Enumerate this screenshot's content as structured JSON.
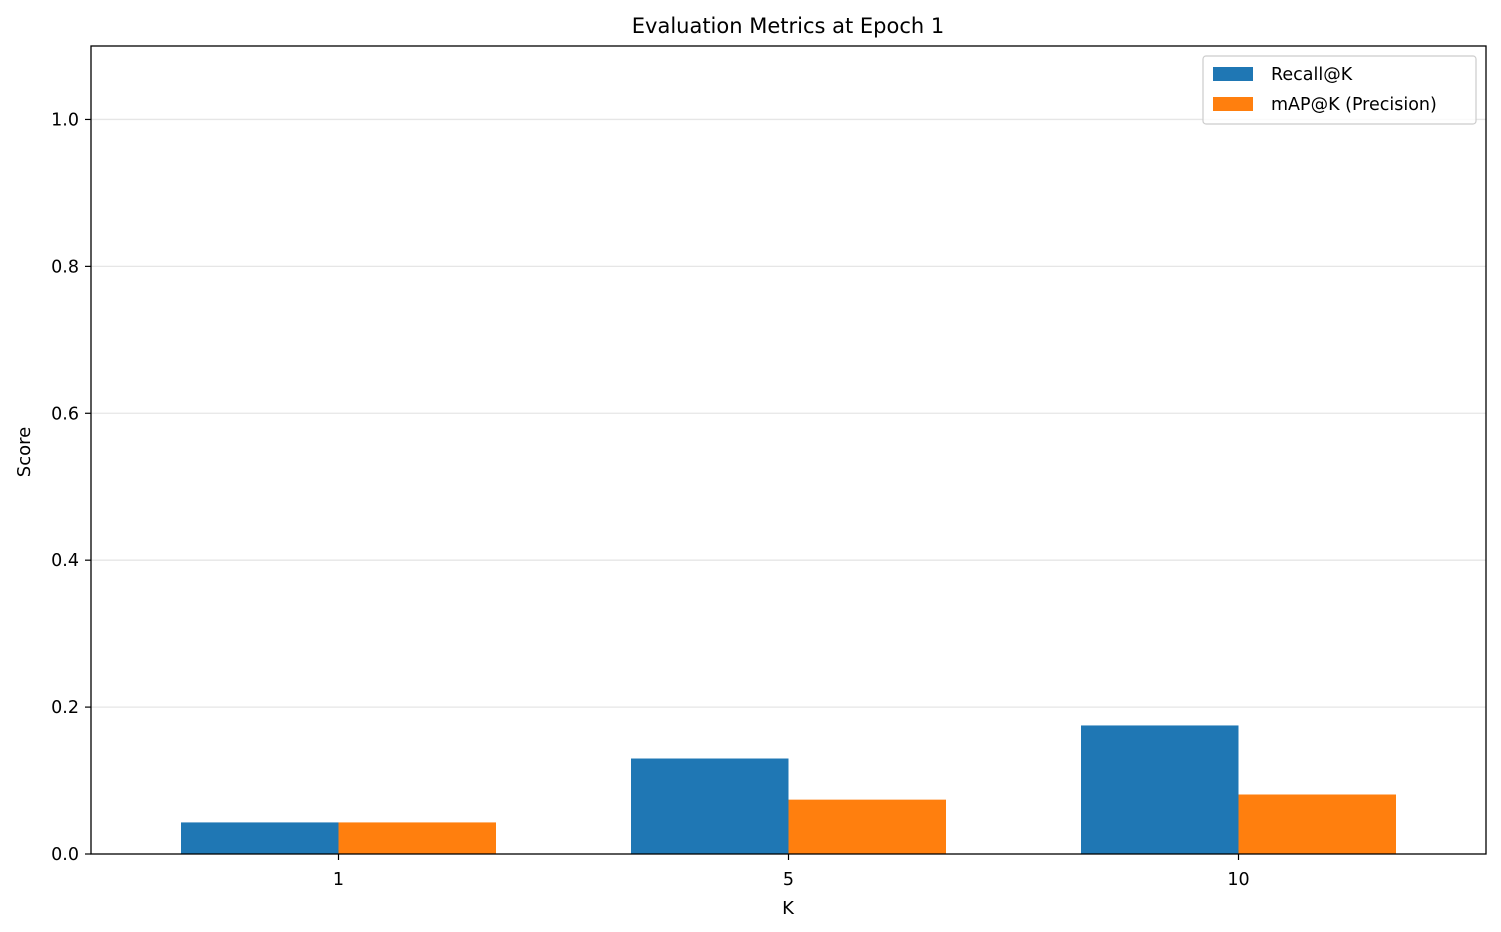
{
  "chart_data": {
    "type": "bar",
    "title": "Evaluation Metrics at Epoch 1",
    "xlabel": "K",
    "ylabel": "Score",
    "categories": [
      "1",
      "5",
      "10"
    ],
    "series": [
      {
        "name": "Recall@K",
        "values": [
          0.043,
          0.13,
          0.175
        ],
        "color": "#1f77b4"
      },
      {
        "name": "mAP@K (Precision)",
        "values": [
          0.043,
          0.074,
          0.081
        ],
        "color": "#ff7f0e"
      }
    ],
    "ylim": [
      0,
      1.1
    ],
    "yticks": [
      "0.0",
      "0.2",
      "0.4",
      "0.6",
      "0.8",
      "1.0"
    ],
    "grid": "y",
    "legend_position": "top-right"
  }
}
